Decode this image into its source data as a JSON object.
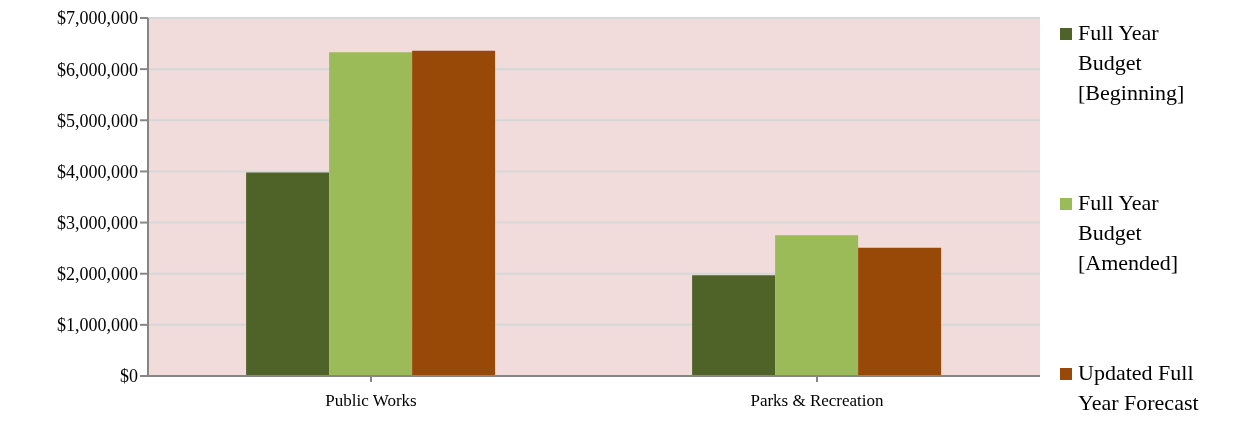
{
  "chart_data": {
    "type": "bar",
    "categories": [
      "Public Works",
      "Parks & Recreation"
    ],
    "series": [
      {
        "name": "Full Year Budget [Beginning]",
        "color": "#4f6228",
        "values": [
          3980000,
          1970000
        ]
      },
      {
        "name": "Full Year Budget [Amended]",
        "color": "#9bbb59",
        "values": [
          6330000,
          2750000
        ]
      },
      {
        "name": "Updated Full Year Forecast",
        "color": "#984807",
        "values": [
          6360000,
          2510000
        ]
      }
    ],
    "ylim": [
      0,
      7000000
    ],
    "yticks": [
      {
        "value": 0,
        "label": "$0"
      },
      {
        "value": 1000000,
        "label": "$1,000,000"
      },
      {
        "value": 2000000,
        "label": "$2,000,000"
      },
      {
        "value": 3000000,
        "label": "$3,000,000"
      },
      {
        "value": 4000000,
        "label": "$4,000,000"
      },
      {
        "value": 5000000,
        "label": "$5,000,000"
      },
      {
        "value": 6000000,
        "label": "$6,000,000"
      },
      {
        "value": 7000000,
        "label": "$7,000,000"
      }
    ],
    "grid": "y",
    "legend": "right"
  }
}
